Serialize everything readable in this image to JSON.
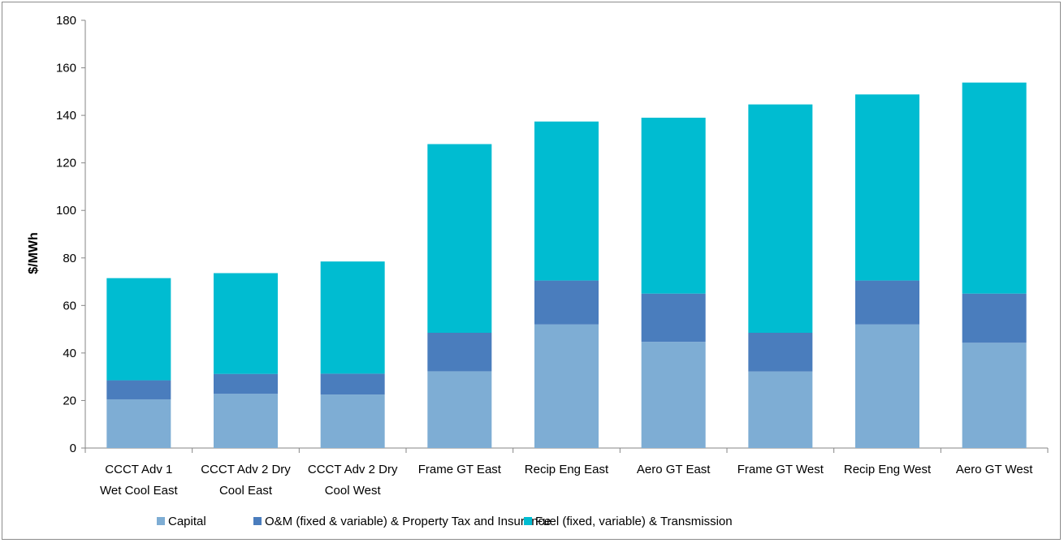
{
  "chart_data": {
    "type": "bar",
    "stacked": true,
    "categories": [
      [
        "CCCT Adv 1",
        "Wet Cool East"
      ],
      [
        "CCCT Adv 2 Dry",
        "Cool East"
      ],
      [
        "CCCT Adv 2 Dry",
        "Cool West"
      ],
      [
        "Frame GT East"
      ],
      [
        "Recip Eng East"
      ],
      [
        "Aero GT East"
      ],
      [
        "Frame GT West"
      ],
      [
        "Recip Eng West"
      ],
      [
        "Aero GT West"
      ]
    ],
    "series": [
      {
        "name": "Capital",
        "color": "#7eadd4",
        "values": [
          20.5,
          22.8,
          22.5,
          32.3,
          52,
          44.7,
          32.2,
          52,
          44.3
        ]
      },
      {
        "name": "O&M (fixed & variable) & Property Tax and Insurance",
        "color": "#4a7dbd",
        "values": [
          8,
          8.4,
          8.8,
          16.2,
          18.5,
          20.3,
          16.3,
          18.5,
          20.7
        ]
      },
      {
        "name": "Fuel (fixed, variable) & Transmission",
        "color": "#00bcd1",
        "values": [
          43,
          42.4,
          47.2,
          79.4,
          66.9,
          74,
          96.1,
          78.3,
          88.8
        ]
      }
    ],
    "title": "",
    "xlabel": "",
    "ylabel": "$/MWh",
    "ylim": [
      0,
      180
    ],
    "yticks": [
      0,
      20,
      40,
      60,
      80,
      100,
      120,
      140,
      160,
      180
    ],
    "grid": false,
    "legend_position": "bottom"
  }
}
